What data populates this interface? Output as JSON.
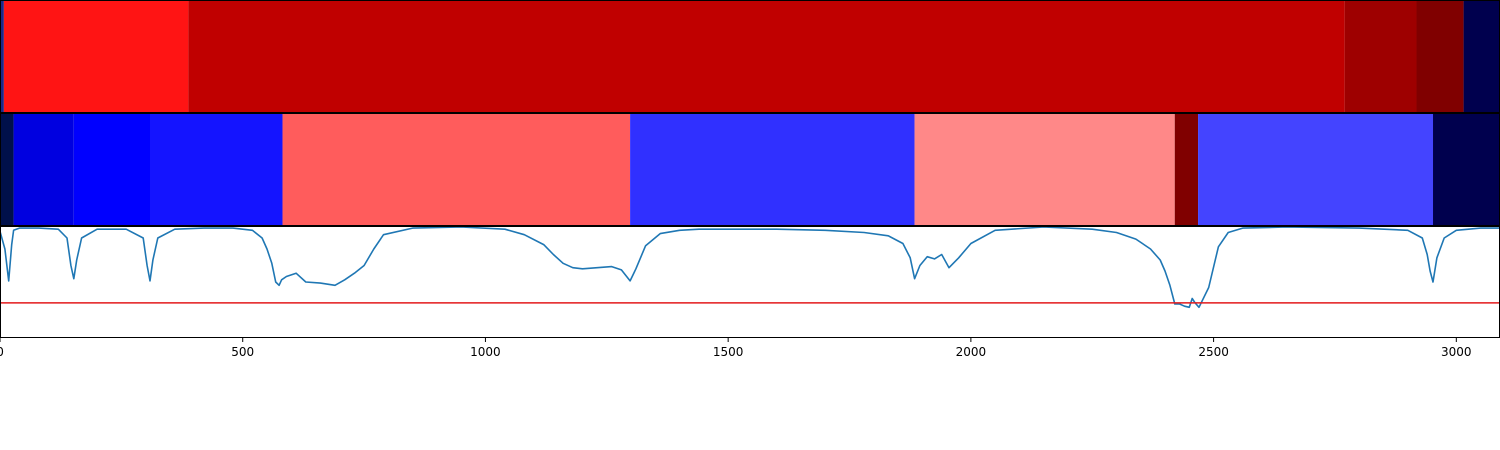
{
  "chart_data": {
    "type": "heatmap",
    "x_range": [
      0,
      3090
    ],
    "x_ticks": [
      0,
      500,
      1000,
      1500,
      2000,
      2500,
      3000
    ],
    "x_tick_labels": [
      "0",
      "500",
      "1000",
      "1500",
      "2000",
      "2500",
      "3000"
    ],
    "grid": false,
    "legend": "none",
    "tracks": [
      {
        "kind": "segments",
        "segments": [
          {
            "start": 0,
            "end": 8,
            "color": "#1a2a8a"
          },
          {
            "start": 8,
            "end": 388,
            "color": "#ff1414"
          },
          {
            "start": 388,
            "end": 2770,
            "color": "#c00000"
          },
          {
            "start": 2770,
            "end": 2918,
            "color": "#9e0000"
          },
          {
            "start": 2918,
            "end": 3015,
            "color": "#800000"
          },
          {
            "start": 3015,
            "end": 3090,
            "color": "#00004e"
          }
        ]
      },
      {
        "kind": "segments",
        "segments": [
          {
            "start": 0,
            "end": 28,
            "color": "#00104a"
          },
          {
            "start": 28,
            "end": 152,
            "color": "#0000e0"
          },
          {
            "start": 152,
            "end": 309,
            "color": "#0000ff"
          },
          {
            "start": 309,
            "end": 582,
            "color": "#1414ff"
          },
          {
            "start": 582,
            "end": 1298,
            "color": "#ff5c5c"
          },
          {
            "start": 1298,
            "end": 1884,
            "color": "#3030ff"
          },
          {
            "start": 1884,
            "end": 2420,
            "color": "#ff8888"
          },
          {
            "start": 2420,
            "end": 2468,
            "color": "#800000"
          },
          {
            "start": 2468,
            "end": 2952,
            "color": "#4444ff"
          },
          {
            "start": 2952,
            "end": 3090,
            "color": "#00004e"
          }
        ]
      },
      {
        "kind": "line",
        "line_color": "#1f77b4",
        "threshold_color": "#e31a1c",
        "y_range": [
          0,
          1
        ],
        "threshold": 0.31,
        "x": [
          0,
          10,
          18,
          24,
          28,
          40,
          80,
          120,
          138,
          146,
          152,
          158,
          168,
          200,
          260,
          295,
          303,
          309,
          315,
          325,
          360,
          420,
          480,
          520,
          540,
          550,
          560,
          568,
          575,
          580,
          590,
          610,
          630,
          660,
          690,
          710,
          730,
          750,
          770,
          790,
          850,
          950,
          1040,
          1080,
          1120,
          1140,
          1160,
          1180,
          1200,
          1230,
          1260,
          1280,
          1298,
          1310,
          1330,
          1360,
          1400,
          1440,
          1500,
          1600,
          1700,
          1780,
          1830,
          1860,
          1875,
          1884,
          1895,
          1910,
          1925,
          1940,
          1955,
          1975,
          2000,
          2050,
          2150,
          2250,
          2300,
          2340,
          2370,
          2390,
          2400,
          2410,
          2420,
          2430,
          2440,
          2450,
          2456,
          2462,
          2470,
          2490,
          2510,
          2530,
          2560,
          2650,
          2800,
          2900,
          2930,
          2940,
          2946,
          2952,
          2960,
          2975,
          3000,
          3050,
          3090
        ],
        "y": [
          0.96,
          0.8,
          0.51,
          0.84,
          0.97,
          0.99,
          0.99,
          0.98,
          0.9,
          0.65,
          0.53,
          0.7,
          0.9,
          0.98,
          0.98,
          0.9,
          0.65,
          0.51,
          0.7,
          0.9,
          0.98,
          0.99,
          0.99,
          0.97,
          0.9,
          0.8,
          0.67,
          0.5,
          0.47,
          0.52,
          0.55,
          0.58,
          0.5,
          0.49,
          0.47,
          0.52,
          0.58,
          0.65,
          0.8,
          0.93,
          0.99,
          1.0,
          0.98,
          0.93,
          0.84,
          0.75,
          0.67,
          0.63,
          0.62,
          0.63,
          0.64,
          0.61,
          0.51,
          0.62,
          0.83,
          0.94,
          0.97,
          0.98,
          0.98,
          0.98,
          0.97,
          0.95,
          0.92,
          0.85,
          0.72,
          0.53,
          0.65,
          0.73,
          0.71,
          0.75,
          0.63,
          0.72,
          0.85,
          0.97,
          1.0,
          0.98,
          0.95,
          0.89,
          0.8,
          0.7,
          0.6,
          0.47,
          0.3,
          0.3,
          0.28,
          0.27,
          0.35,
          0.31,
          0.27,
          0.45,
          0.82,
          0.95,
          0.99,
          1.0,
          0.99,
          0.97,
          0.9,
          0.75,
          0.6,
          0.5,
          0.72,
          0.9,
          0.97,
          0.99,
          0.99
        ]
      }
    ]
  }
}
